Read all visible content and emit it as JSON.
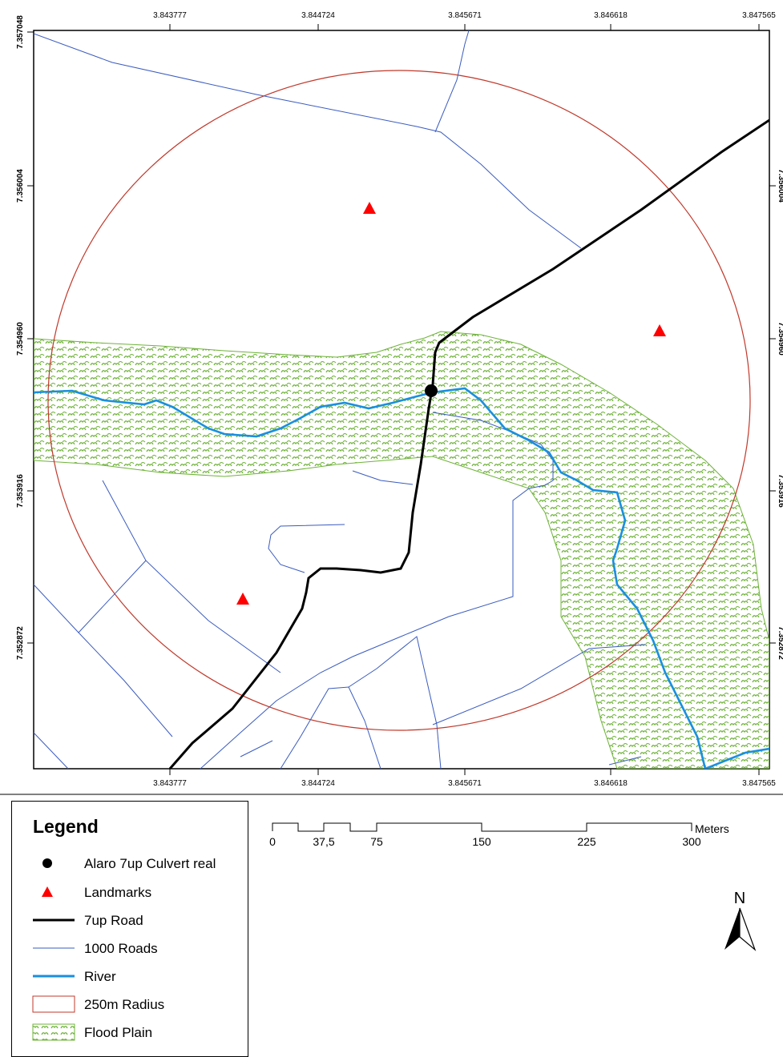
{
  "axes": {
    "x_ticks": [
      "3.843777",
      "3.844724",
      "3.845671",
      "3.846618",
      "3.847565"
    ],
    "y_ticks_left": [
      "7.357048",
      "7.356004",
      "7.354960",
      "7.353916",
      "7.352872"
    ],
    "y_ticks_right": [
      "7.356004",
      "7.354960",
      "7.353916",
      "7.352872"
    ]
  },
  "legend": {
    "title": "Legend",
    "items": [
      {
        "label": "Alaro 7up Culvert real",
        "symbol": "black-dot-icon"
      },
      {
        "label": "Landmarks",
        "symbol": "red-triangle-icon"
      },
      {
        "label": "7up Road",
        "symbol": "thick-black-line-icon"
      },
      {
        "label": "1000 Roads",
        "symbol": "thin-blue-line-icon"
      },
      {
        "label": "River",
        "symbol": "light-blue-line-icon"
      },
      {
        "label": "250m Radius",
        "symbol": "red-outline-box-icon"
      },
      {
        "label": "Flood Plain",
        "symbol": "green-hatch-box-icon"
      }
    ]
  },
  "scale_bar": {
    "labels": [
      "0",
      "37,5",
      "75",
      "150",
      "225",
      "300"
    ],
    "unit": "Meters"
  },
  "north_arrow": {
    "label": "N"
  },
  "colors": {
    "radius": "#c0392b",
    "roads": "#3a5bbf",
    "road_7up": "#000000",
    "river": "#1a8fe0",
    "flood_plain": "#6fb33a",
    "landmark": "#ff0000"
  }
}
